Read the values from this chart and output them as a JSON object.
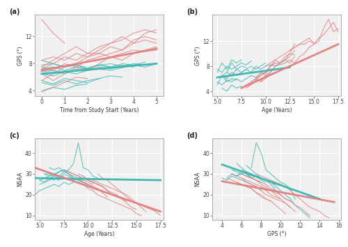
{
  "cyan_color": "#3ab5b0",
  "red_color": "#e08080",
  "background_color": "#f0f0f0",
  "plot_bg": "#f0f0f0",
  "grid_color": "white",
  "spine_color": "#999999",
  "panels": {
    "a": {
      "xlabel": "Time from Study Start (Years)",
      "ylabel": "GPS (°)",
      "xlim": [
        -0.3,
        5.3
      ],
      "ylim": [
        3.2,
        15.2
      ],
      "xticks": [
        0,
        1,
        2,
        3,
        4,
        5
      ],
      "yticks": [
        4,
        8,
        12
      ]
    },
    "b": {
      "xlabel": "Age (Years)",
      "ylabel": "GPS (°)",
      "xlim": [
        4.5,
        17.8
      ],
      "ylim": [
        3.2,
        16.2
      ],
      "xticks": [
        5.0,
        7.5,
        10.0,
        12.5,
        15.0,
        17.5
      ],
      "yticks": [
        4,
        8,
        12
      ]
    },
    "c": {
      "xlabel": "Age (Years)",
      "ylabel": "NSAA",
      "xlim": [
        4.5,
        17.8
      ],
      "ylim": [
        8,
        47
      ],
      "xticks": [
        5.0,
        7.5,
        10.0,
        12.5,
        15.0,
        17.5
      ],
      "yticks": [
        10,
        20,
        30,
        40
      ]
    },
    "d": {
      "xlabel": "GPS (°)",
      "ylabel": "NSAA",
      "xlim": [
        3.0,
        16.2
      ],
      "ylim": [
        8,
        47
      ],
      "xticks": [
        4,
        6,
        8,
        10,
        12,
        14,
        16
      ],
      "yticks": [
        10,
        20,
        30,
        40
      ]
    }
  }
}
